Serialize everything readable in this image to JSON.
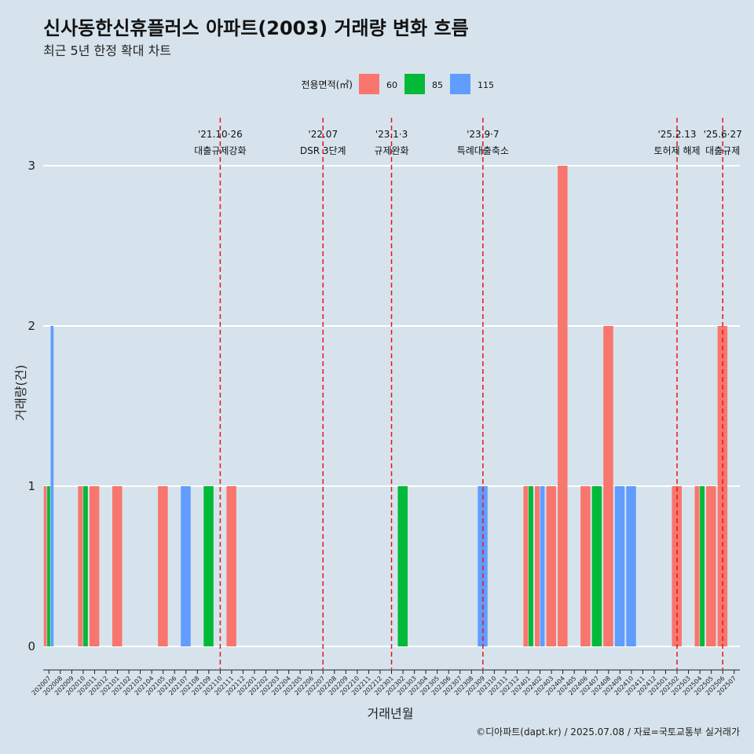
{
  "chart_data": {
    "type": "bar",
    "title": "신사동한신휴플러스 아파트(2003) 거래량 변화 흐름",
    "subtitle": "최근 5년 한정 확대 차트",
    "xlabel": "거래년월",
    "ylabel": "거래량(건)",
    "caption": "©디아파트(dapt.kr) / 2025.07.08 / 자료=국토교통부 실거래가",
    "ylim": [
      0,
      3
    ],
    "yticks": [
      "0",
      "1",
      "2",
      "3"
    ],
    "grid": "horizontal",
    "legend": {
      "title": "전용면적(㎡)",
      "position": "top"
    },
    "colors": {
      "60": "#f8766d",
      "85": "#00ba38",
      "115": "#619cff"
    },
    "categories": [
      "202007",
      "202008",
      "202009",
      "202010",
      "202011",
      "202012",
      "202101",
      "202102",
      "202103",
      "202104",
      "202105",
      "202106",
      "202107",
      "202108",
      "202109",
      "202110",
      "202111",
      "202112",
      "202201",
      "202202",
      "202203",
      "202204",
      "202205",
      "202206",
      "202207",
      "202208",
      "202209",
      "202210",
      "202211",
      "202212",
      "202301",
      "202302",
      "202303",
      "202304",
      "202305",
      "202306",
      "202307",
      "202308",
      "202309",
      "202310",
      "202311",
      "202312",
      "202401",
      "202402",
      "202403",
      "202404",
      "202405",
      "202406",
      "202407",
      "202408",
      "202409",
      "202410",
      "202411",
      "202412",
      "202501",
      "202502",
      "202503",
      "202504",
      "202505",
      "202506",
      "202507"
    ],
    "series": [
      {
        "name": "60",
        "values": [
          1,
          0,
          0,
          1,
          1,
          0,
          1,
          0,
          0,
          0,
          1,
          0,
          0,
          0,
          0,
          0,
          1,
          0,
          0,
          0,
          0,
          0,
          0,
          0,
          0,
          0,
          0,
          0,
          0,
          0,
          0,
          0,
          0,
          0,
          0,
          0,
          0,
          0,
          0,
          0,
          0,
          0,
          1,
          1,
          1,
          3,
          0,
          1,
          0,
          2,
          0,
          0,
          0,
          0,
          0,
          1,
          0,
          1,
          1,
          2,
          0
        ]
      },
      {
        "name": "85",
        "values": [
          1,
          0,
          0,
          1,
          0,
          0,
          0,
          0,
          0,
          0,
          0,
          0,
          0,
          0,
          1,
          0,
          0,
          0,
          0,
          0,
          0,
          0,
          0,
          0,
          0,
          0,
          0,
          0,
          0,
          0,
          0,
          1,
          0,
          0,
          0,
          0,
          0,
          0,
          0,
          0,
          0,
          0,
          1,
          0,
          0,
          0,
          0,
          0,
          1,
          0,
          0,
          0,
          0,
          0,
          0,
          0,
          0,
          1,
          0,
          0,
          0
        ]
      },
      {
        "name": "115",
        "values": [
          2,
          0,
          0,
          0,
          0,
          0,
          0,
          0,
          0,
          0,
          0,
          0,
          1,
          0,
          0,
          0,
          0,
          0,
          0,
          0,
          0,
          0,
          0,
          0,
          0,
          0,
          0,
          0,
          0,
          0,
          0,
          0,
          0,
          0,
          0,
          0,
          0,
          0,
          1,
          0,
          0,
          0,
          0,
          1,
          0,
          0,
          0,
          0,
          0,
          0,
          1,
          1,
          0,
          0,
          0,
          0,
          0,
          0,
          0,
          0,
          0
        ]
      }
    ],
    "events": [
      {
        "at": "202110",
        "date": "'21.10·26",
        "label": "대출규제강화"
      },
      {
        "at": "202207",
        "date": "'22.07",
        "label": "DSR 3단계"
      },
      {
        "at": "202301",
        "date": "'23.1·3",
        "label": "규제완화"
      },
      {
        "at": "202309",
        "date": "'23.9·7",
        "label": "특례대출축소"
      },
      {
        "at": "202502",
        "date": "'25.2.13",
        "label": "토허제 해제"
      },
      {
        "at": "202506",
        "date": "'25.6·27",
        "label": "대출규제"
      }
    ]
  }
}
